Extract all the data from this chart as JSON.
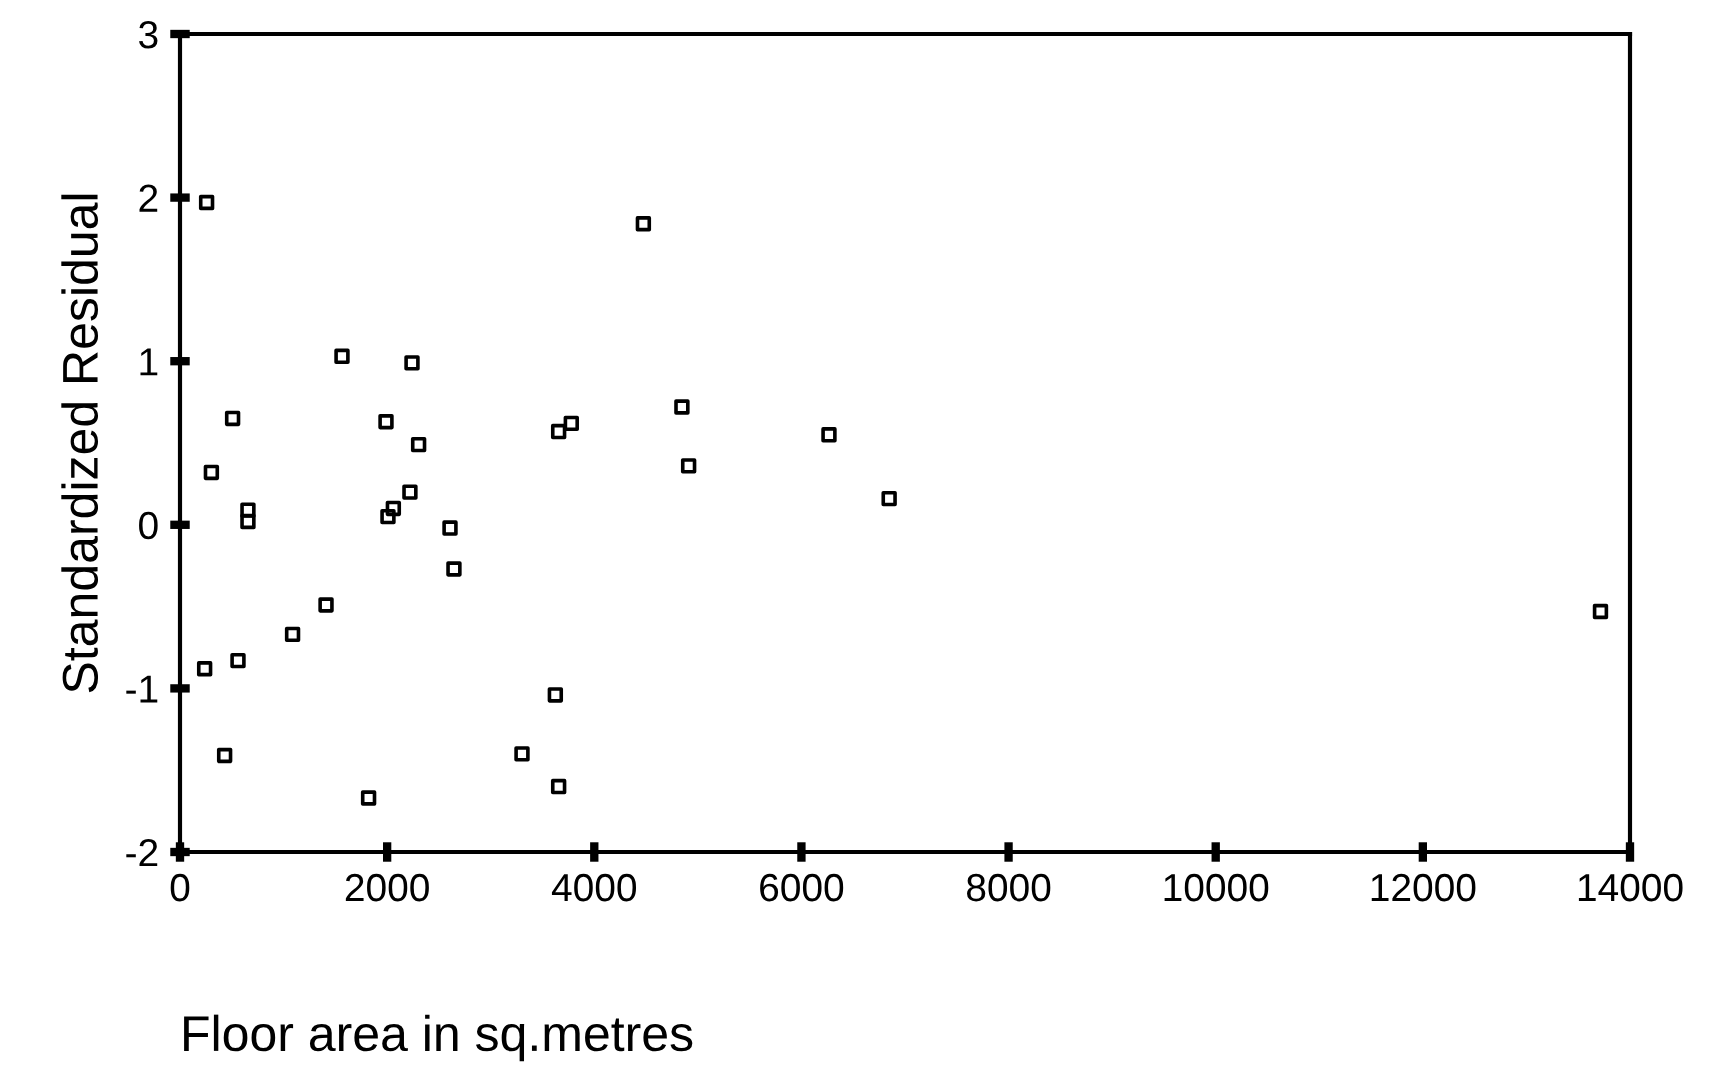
{
  "chart_data": {
    "type": "scatter",
    "xlabel": "Floor area in sq.metres",
    "ylabel": "Standardized Residual",
    "x": [
      257,
      4474,
      1564,
      2240,
      508,
      1989,
      4846,
      3656,
      3778,
      2304,
      303,
      4911,
      2220,
      656,
      656,
      2060,
      2008,
      2607,
      2645,
      1410,
      1087,
      238,
      560,
      3624,
      431,
      3302,
      3656,
      1821,
      6266,
      6847,
      13715
    ],
    "values": [
      1.97,
      1.84,
      1.03,
      0.99,
      0.65,
      0.63,
      0.72,
      0.57,
      0.62,
      0.49,
      0.32,
      0.36,
      0.2,
      0.09,
      0.02,
      0.1,
      0.05,
      -0.02,
      -0.27,
      -0.49,
      -0.67,
      -0.88,
      -0.83,
      -1.04,
      -1.41,
      -1.4,
      -1.6,
      -1.67,
      0.55,
      0.16,
      -0.53
    ],
    "color": "#000000",
    "marker": "square",
    "xlim": [
      0,
      14000
    ],
    "ylim": [
      -2,
      3
    ],
    "xticks": [
      0,
      2000,
      4000,
      6000,
      8000,
      10000,
      12000,
      14000
    ],
    "yticks": [
      -2,
      -1,
      0,
      1,
      2,
      3
    ],
    "grid": false,
    "legend": false
  }
}
